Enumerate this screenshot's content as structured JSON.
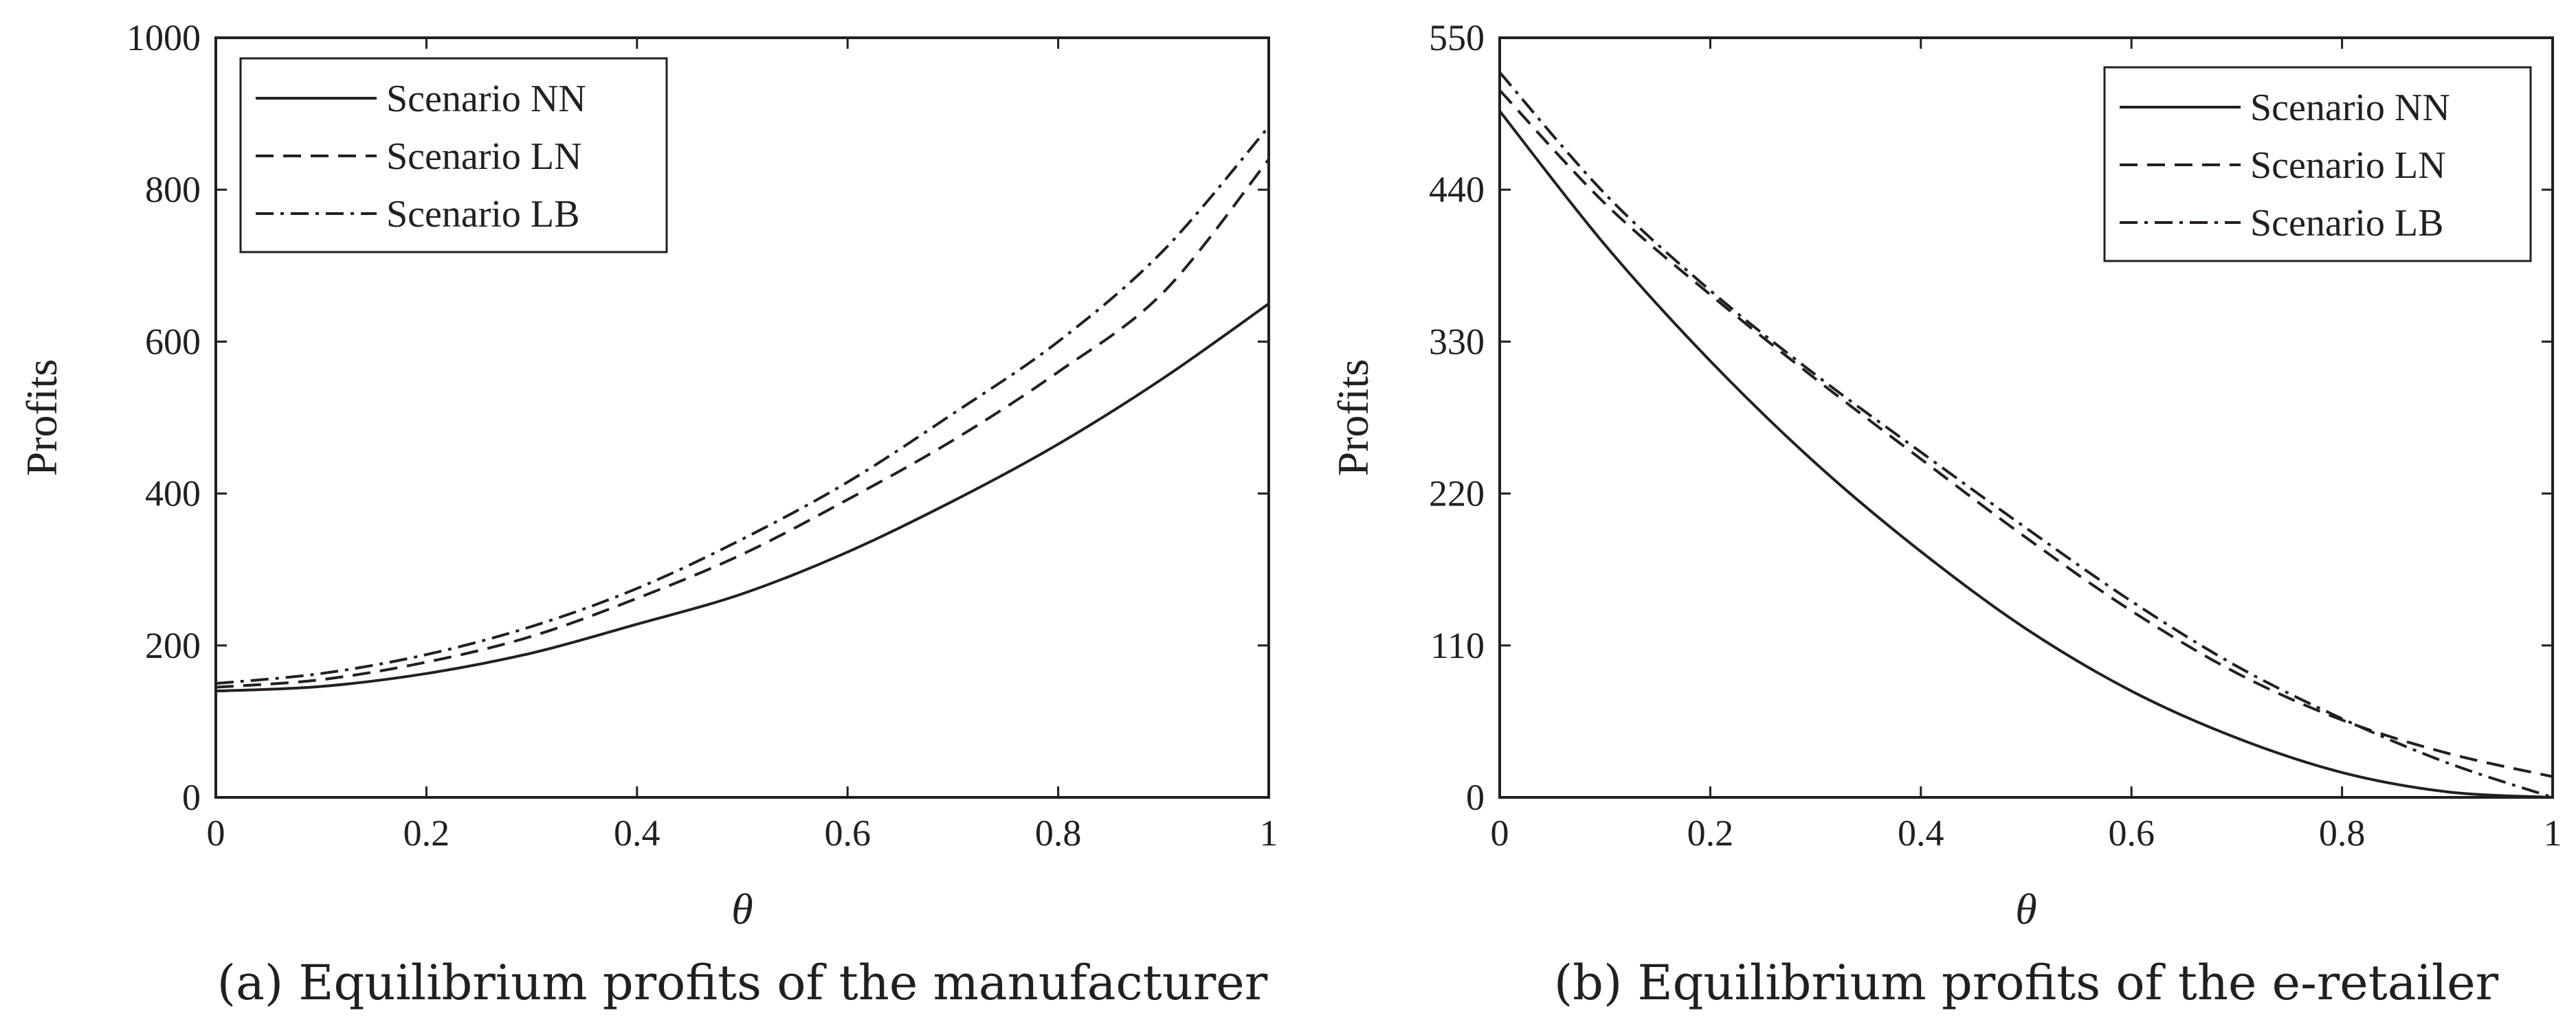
{
  "chart_data": [
    {
      "type": "line",
      "caption": "(a) Equilibrium profits of the manufacturer",
      "xlabel": "θ",
      "ylabel": "Profits",
      "xlim": [
        0,
        1
      ],
      "ylim": [
        0,
        1000
      ],
      "xticks": [
        0,
        0.2,
        0.4,
        0.6,
        0.8,
        1
      ],
      "xtick_labels": [
        "0",
        "0.2",
        "0.4",
        "0.6",
        "0.8",
        "1"
      ],
      "yticks": [
        0,
        200,
        400,
        600,
        800,
        1000
      ],
      "ytick_labels": [
        "0",
        "200",
        "400",
        "600",
        "800",
        "1000"
      ],
      "legend_position": "top-left",
      "x": [
        0,
        0.1,
        0.2,
        0.3,
        0.4,
        0.5,
        0.6,
        0.7,
        0.8,
        0.9,
        1.0
      ],
      "series": [
        {
          "name": "Scenario NN",
          "style": "solid",
          "values": [
            140,
            146,
            163,
            190,
            228,
            268,
            323,
            390,
            465,
            552,
            650
          ]
        },
        {
          "name": "Scenario LN",
          "style": "dashed",
          "values": [
            145,
            155,
            178,
            212,
            262,
            320,
            392,
            470,
            560,
            665,
            840
          ]
        },
        {
          "name": "Scenario LB",
          "style": "dashdot",
          "values": [
            150,
            163,
            188,
            225,
            275,
            340,
            415,
            505,
            600,
            720,
            883
          ]
        }
      ]
    },
    {
      "type": "line",
      "caption": "(b) Equilibrium profits of the e-retailer",
      "xlabel": "θ",
      "ylabel": "Profits",
      "xlim": [
        0,
        1
      ],
      "ylim": [
        0,
        550
      ],
      "xticks": [
        0,
        0.2,
        0.4,
        0.6,
        0.8,
        1
      ],
      "xtick_labels": [
        "0",
        "0.2",
        "0.4",
        "0.6",
        "0.8",
        "1"
      ],
      "yticks": [
        0,
        110,
        220,
        330,
        440,
        550
      ],
      "ytick_labels": [
        "0",
        "110",
        "220",
        "330",
        "440",
        "550"
      ],
      "legend_position": "top-right",
      "x": [
        0,
        0.1,
        0.2,
        0.3,
        0.4,
        0.5,
        0.6,
        0.7,
        0.8,
        0.9,
        1.0
      ],
      "series": [
        {
          "name": "Scenario NN",
          "style": "solid",
          "values": [
            497,
            400,
            316,
            242,
            178,
            122,
            77,
            43,
            18,
            4,
            0
          ]
        },
        {
          "name": "Scenario LN",
          "style": "dashed",
          "values": [
            512,
            430,
            364,
            303,
            245,
            188,
            135,
            90,
            56,
            32,
            15
          ]
        },
        {
          "name": "Scenario LB",
          "style": "dashdot",
          "values": [
            525,
            437,
            367,
            306,
            250,
            195,
            142,
            95,
            57,
            25,
            0
          ]
        }
      ]
    }
  ]
}
